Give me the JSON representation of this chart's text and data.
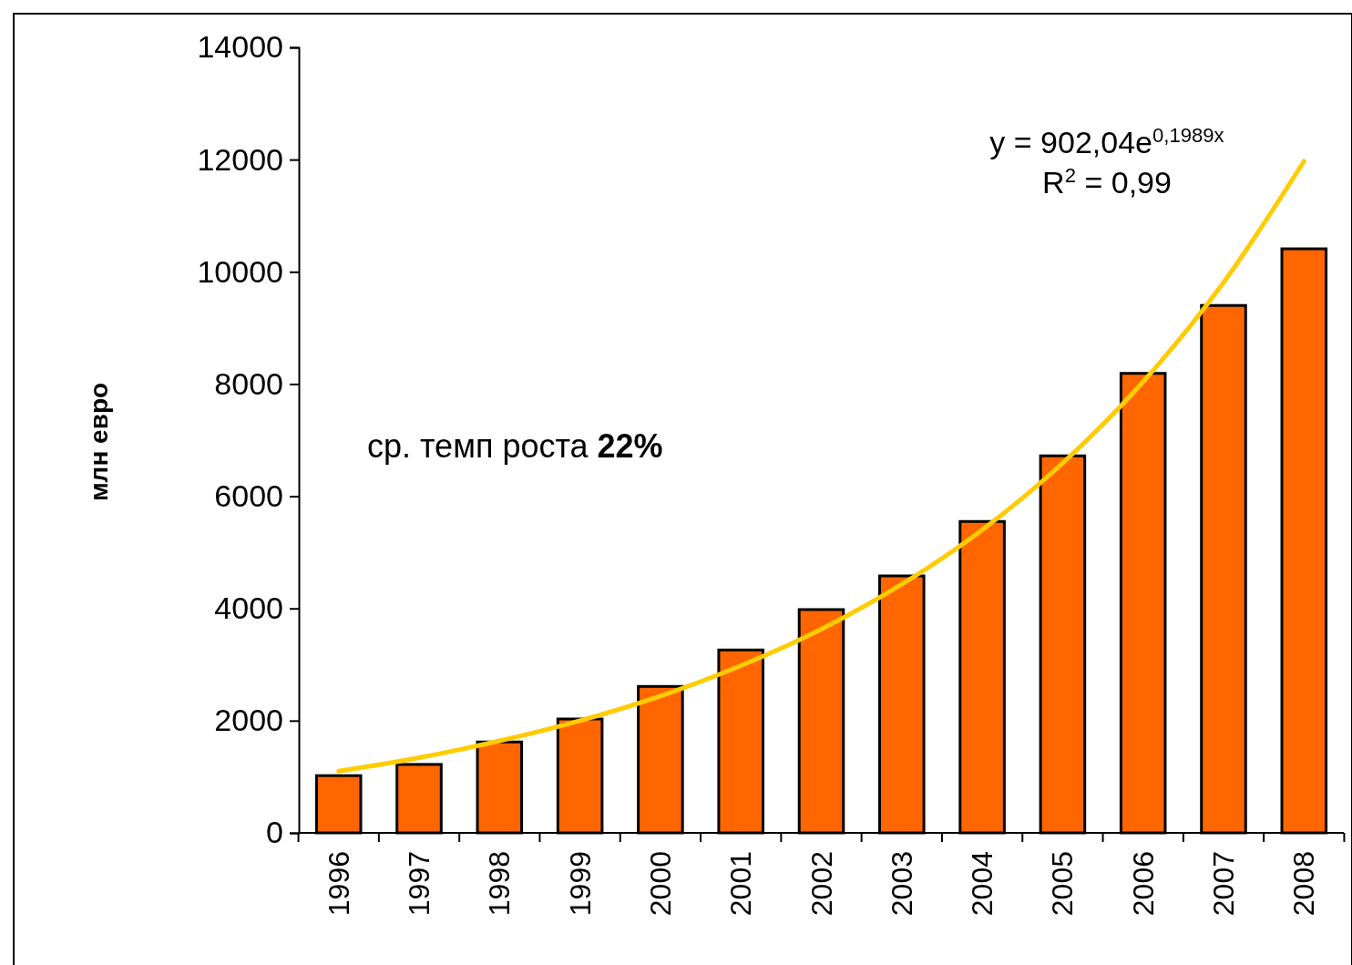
{
  "chart_data": {
    "type": "bar",
    "ylabel": "млн евро",
    "categories": [
      "1996",
      "1997",
      "1998",
      "1999",
      "2000",
      "2001",
      "2002",
      "2003",
      "2004",
      "2005",
      "2006",
      "2007",
      "2008"
    ],
    "ylim": [
      0,
      14000
    ],
    "yticks": [
      0,
      2000,
      4000,
      6000,
      8000,
      10000,
      12000,
      14000
    ],
    "grid": false,
    "series": [
      {
        "color": "#ff6600",
        "values": [
          1020,
          1220,
          1620,
          2030,
          2610,
          3260,
          3980,
          4580,
          5550,
          6720,
          8190,
          9400,
          10410
        ]
      },
      {
        "type": "line",
        "color": "#ffcc00",
        "values": [
          1100,
          1340,
          1640,
          2000,
          2440,
          2980,
          3630,
          4430,
          5400,
          6590,
          8040,
          9810,
          11970
        ]
      }
    ],
    "annotations": [
      "ср. темп роста  22%",
      "y = 902,04e$^{0,1989x}$",
      "R$^{2}$ = 0,99"
    ]
  }
}
